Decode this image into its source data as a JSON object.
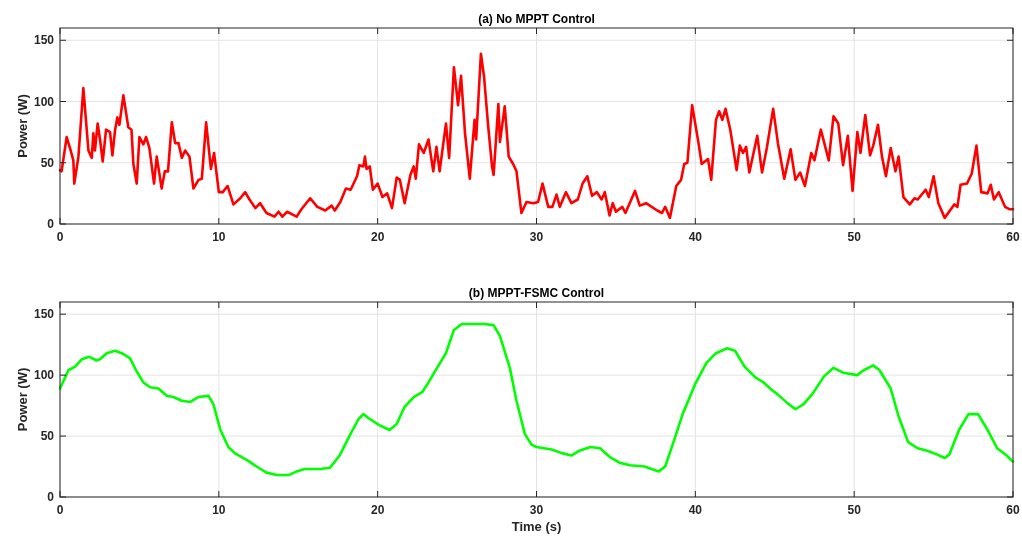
{
  "chart_data": [
    {
      "type": "line",
      "title": "(a) No MPPT Control",
      "ylabel": "Power (W)",
      "xlim": [
        0,
        60
      ],
      "xticks": [
        0,
        10,
        20,
        30,
        40,
        50,
        60
      ],
      "ylim": [
        0,
        160
      ],
      "yticks": [
        0,
        50,
        100,
        150
      ],
      "grid": true,
      "line_style": "solid",
      "series": [
        {
          "color": "#ff0000",
          "x": [
            0,
            0.1,
            0.42,
            0.63,
            0.84,
            0.9,
            1.16,
            1.47,
            1.79,
            2.0,
            2.1,
            2.2,
            2.37,
            2.52,
            2.69,
            2.9,
            3.15,
            3.3,
            3.47,
            3.61,
            3.74,
            3.99,
            4.3,
            4.5,
            4.62,
            4.83,
            5.0,
            5.25,
            5.42,
            5.63,
            5.92,
            6.09,
            6.4,
            6.6,
            6.8,
            7.04,
            7.25,
            7.46,
            7.67,
            7.88,
            8.15,
            8.4,
            8.72,
            8.93,
            9.2,
            9.5,
            9.7,
            10.0,
            10.25,
            10.55,
            10.92,
            11.35,
            11.66,
            11.93,
            12.3,
            12.6,
            13.0,
            13.5,
            13.76,
            14.0,
            14.3,
            14.9,
            15.2,
            15.75,
            16.2,
            16.7,
            17.1,
            17.3,
            17.65,
            18.0,
            18.3,
            18.7,
            18.85,
            19.1,
            19.2,
            19.3,
            19.5,
            19.7,
            20.0,
            20.3,
            20.6,
            20.9,
            21.2,
            21.4,
            21.7,
            22.06,
            22.27,
            22.4,
            22.6,
            22.9,
            23.2,
            23.5,
            23.7,
            23.9,
            24.3,
            24.5,
            24.8,
            25.06,
            25.25,
            25.5,
            25.8,
            26.1,
            26.2,
            26.5,
            26.7,
            26.95,
            27.2,
            27.3,
            27.6,
            27.7,
            28.0,
            28.25,
            28.53,
            28.74,
            29.05,
            29.37,
            29.8,
            30.1,
            30.38,
            30.74,
            31.0,
            31.26,
            31.47,
            31.85,
            32.2,
            32.6,
            32.9,
            33.2,
            33.5,
            33.8,
            34.1,
            34.3,
            34.6,
            34.8,
            35.0,
            35.4,
            35.6,
            36.2,
            36.5,
            36.9,
            37.6,
            37.9,
            38.1,
            38.4,
            38.8,
            39.1,
            39.3,
            39.5,
            39.8,
            40.2,
            40.4,
            40.8,
            41.0,
            41.3,
            41.5,
            41.7,
            41.9,
            42.2,
            42.6,
            42.8,
            43.0,
            43.2,
            43.4,
            43.9,
            44.2,
            44.5,
            44.9,
            45.2,
            45.6,
            46.0,
            46.3,
            46.6,
            46.9,
            47.3,
            47.5,
            47.9,
            48.4,
            48.7,
            49.0,
            49.3,
            49.6,
            49.9,
            50.2,
            50.4,
            50.7,
            51.0,
            51.2,
            51.5,
            51.75,
            52.0,
            52.3,
            52.6,
            52.8,
            53.1,
            53.5,
            53.8,
            54.0,
            54.5,
            54.7,
            55.0,
            55.3,
            55.7,
            56.3,
            56.5,
            56.7,
            57.1,
            57.4,
            57.7,
            58.0,
            58.4,
            58.6,
            58.8,
            59.1,
            59.5,
            59.8,
            60
          ],
          "values": [
            44,
            43,
            71,
            62,
            52,
            33,
            55,
            111,
            60,
            54,
            74,
            60,
            82,
            69,
            51,
            77,
            75,
            56,
            77,
            87,
            81,
            105,
            79,
            77,
            49,
            33,
            71,
            65,
            71,
            62,
            33,
            55,
            29,
            43,
            43,
            83,
            66,
            66,
            54,
            60,
            55,
            29,
            36,
            37,
            83,
            45,
            58,
            26,
            26,
            31,
            16,
            21,
            26,
            20,
            13,
            17,
            9,
            6,
            10,
            6,
            10,
            6,
            12,
            21,
            14,
            11,
            15,
            11,
            18,
            29,
            28,
            39,
            48,
            47,
            55,
            45,
            47,
            28,
            33,
            22,
            25,
            13,
            38,
            36,
            17,
            40,
            47,
            37,
            65,
            58,
            69,
            43,
            63,
            43,
            82,
            54,
            128,
            97,
            121,
            74,
            37,
            85,
            69,
            139,
            120,
            81,
            47,
            40,
            98,
            67,
            96,
            55,
            49,
            43,
            9,
            18,
            17,
            18,
            33,
            14,
            14,
            24,
            14,
            26,
            17,
            20,
            33,
            39,
            23,
            26,
            20,
            26,
            7,
            17,
            10,
            14,
            9,
            27,
            15,
            17,
            11,
            9,
            14,
            5,
            31,
            36,
            49,
            50,
            97,
            66,
            49,
            53,
            36,
            85,
            92,
            85,
            94,
            77,
            44,
            64,
            58,
            63,
            42,
            72,
            42,
            62,
            94,
            66,
            37,
            61,
            36,
            42,
            31,
            58,
            52,
            77,
            52,
            88,
            82,
            48,
            72,
            27,
            75,
            58,
            89,
            56,
            64,
            81,
            55,
            39,
            62,
            43,
            55,
            22,
            16,
            21,
            20,
            28,
            22,
            39,
            17,
            5,
            16,
            14,
            32,
            33,
            41,
            64,
            26,
            25,
            32,
            20,
            26,
            14,
            12,
            12
          ]
        }
      ]
    },
    {
      "type": "line",
      "title": "(b) MPPT-FSMC Control",
      "xlabel": "Time (s)",
      "ylabel": "Power (W)",
      "xlim": [
        0,
        60
      ],
      "xticks": [
        0,
        10,
        20,
        30,
        40,
        50,
        60
      ],
      "ylim": [
        0,
        160
      ],
      "yticks": [
        0,
        50,
        100,
        150
      ],
      "grid": true,
      "line_style": "solid",
      "series": [
        {
          "color": "#00ff00",
          "x": [
            0,
            0.53,
            0.95,
            1.37,
            1.85,
            2.3,
            2.52,
            2.94,
            3.47,
            3.89,
            4.4,
            4.83,
            5.25,
            5.67,
            6.2,
            6.72,
            7.14,
            7.67,
            8.2,
            8.7,
            9.35,
            9.66,
            10.1,
            10.6,
            11.0,
            11.8,
            12.5,
            13.0,
            13.66,
            14.4,
            14.9,
            15.4,
            16.4,
            17.0,
            17.6,
            18.3,
            18.8,
            19.1,
            19.5,
            20.1,
            20.75,
            21.2,
            21.7,
            22.27,
            22.8,
            23.2,
            23.74,
            24.3,
            24.8,
            25.3,
            25.6,
            26.7,
            27.3,
            27.7,
            28.32,
            28.74,
            29.26,
            29.68,
            30,
            30.95,
            31.6,
            32.2,
            32.7,
            33.4,
            34.0,
            34.6,
            35.25,
            35.9,
            36.8,
            37.7,
            38.1,
            38.6,
            39.2,
            40.0,
            40.7,
            41.3,
            42.0,
            42.5,
            43.1,
            43.8,
            44.3,
            44.8,
            45.2,
            45.8,
            46.3,
            46.8,
            47.4,
            48.1,
            48.7,
            49.3,
            50.2,
            50.6,
            51.2,
            51.6,
            52.3,
            52.8,
            53.4,
            54.0,
            54.6,
            55.2,
            55.7,
            56.0,
            56.6,
            57.2,
            57.8,
            58.4,
            59.0,
            59.6,
            60
          ],
          "values": [
            89,
            104,
            107,
            113,
            115,
            112,
            113,
            118,
            120,
            118,
            114,
            103,
            94,
            90,
            89,
            83,
            82,
            79,
            78,
            82,
            83,
            76,
            55,
            41,
            36,
            30,
            24,
            20,
            18,
            18,
            21,
            23,
            23,
            24,
            34,
            52,
            64,
            68,
            64,
            59,
            55,
            60,
            74,
            82,
            86,
            94,
            106,
            118,
            137,
            142,
            142,
            142,
            141,
            132,
            106,
            79,
            52,
            43,
            41,
            39,
            36,
            34,
            38,
            41,
            40,
            33,
            28,
            26,
            25,
            21,
            25,
            44,
            68,
            93,
            110,
            118,
            122,
            120,
            107,
            98,
            94,
            88,
            84,
            77,
            72,
            76,
            85,
            99,
            106,
            102,
            100,
            104,
            108,
            104,
            89,
            66,
            45,
            40,
            38,
            35,
            32,
            35,
            55,
            68,
            68,
            55,
            40,
            34,
            29
          ]
        }
      ]
    }
  ]
}
